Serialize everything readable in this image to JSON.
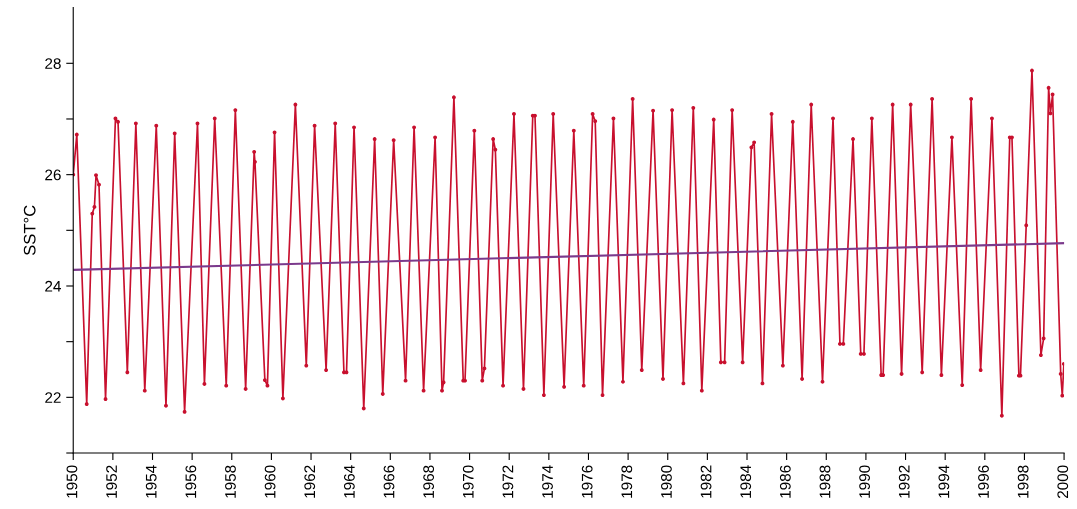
{
  "chart_data": {
    "type": "line",
    "ylabel": "SST°C",
    "xlim": [
      1950,
      2000
    ],
    "ylim": [
      21,
      29
    ],
    "xticks": [
      1950,
      1952,
      1954,
      1956,
      1958,
      1960,
      1962,
      1964,
      1966,
      1968,
      1970,
      1972,
      1974,
      1976,
      1978,
      1980,
      1982,
      1984,
      1986,
      1988,
      1990,
      1992,
      1994,
      1996,
      1998,
      2000
    ],
    "yticks": [
      {
        "value": 21,
        "label": null
      },
      22,
      {
        "value": 23,
        "label": null
      },
      24,
      {
        "value": 25,
        "label": null
      },
      26,
      {
        "value": 27,
        "label": null
      },
      28
    ],
    "grid": false,
    "marker": "circle",
    "line_style": "solid",
    "series": [
      {
        "color": "#c8102e",
        "x": [
          1950.0,
          1950.18,
          1950.68,
          1950.96,
          1951.07,
          1951.15,
          1951.3,
          1951.63,
          1952.13,
          1952.26,
          1952.73,
          1953.16,
          1953.61,
          1954.19,
          1954.68,
          1955.12,
          1955.62,
          1956.27,
          1956.62,
          1957.14,
          1957.72,
          1958.18,
          1958.7,
          1959.13,
          1959.17,
          1959.67,
          1959.8,
          1960.16,
          1960.58,
          1961.21,
          1961.76,
          1962.18,
          1962.76,
          1963.22,
          1963.66,
          1963.79,
          1964.17,
          1964.66,
          1965.21,
          1965.62,
          1966.17,
          1966.77,
          1967.2,
          1967.68,
          1968.26,
          1968.61,
          1968.69,
          1969.21,
          1969.68,
          1969.77,
          1970.24,
          1970.64,
          1970.75,
          1971.19,
          1971.3,
          1971.69,
          1972.24,
          1972.72,
          1973.19,
          1973.3,
          1973.75,
          1974.22,
          1974.77,
          1975.26,
          1975.76,
          1976.21,
          1976.34,
          1976.71,
          1977.26,
          1977.74,
          1978.23,
          1978.69,
          1979.26,
          1979.76,
          1980.22,
          1980.79,
          1981.29,
          1981.72,
          1982.32,
          1982.68,
          1982.87,
          1983.25,
          1983.78,
          1984.22,
          1984.36,
          1984.78,
          1985.24,
          1985.81,
          1986.31,
          1986.78,
          1987.24,
          1987.81,
          1988.34,
          1988.69,
          1988.86,
          1989.35,
          1989.74,
          1989.9,
          1990.3,
          1990.77,
          1990.87,
          1991.35,
          1991.8,
          1992.26,
          1992.84,
          1993.34,
          1993.81,
          1994.34,
          1994.86,
          1995.31,
          1995.79,
          1996.36,
          1996.86,
          1997.26,
          1997.37,
          1997.72,
          1997.8,
          1998.09,
          1998.38,
          1998.83,
          1998.97,
          1999.22,
          1999.31,
          1999.42,
          1999.83,
          1999.91,
          1999.99
        ],
        "values": [
          26.0,
          26.72,
          21.88,
          25.3,
          25.42,
          25.99,
          25.82,
          21.97,
          27.01,
          26.95,
          22.45,
          26.92,
          22.12,
          26.88,
          21.85,
          26.74,
          21.74,
          26.92,
          22.24,
          27.01,
          22.21,
          27.16,
          22.15,
          26.41,
          26.23,
          22.31,
          22.21,
          26.76,
          21.98,
          27.26,
          22.57,
          26.88,
          22.49,
          26.92,
          22.45,
          22.45,
          26.85,
          21.8,
          26.64,
          22.06,
          26.62,
          22.3,
          26.85,
          22.12,
          26.67,
          22.12,
          22.27,
          27.39,
          22.3,
          22.3,
          26.79,
          22.3,
          22.52,
          26.64,
          26.45,
          22.21,
          27.09,
          22.15,
          27.06,
          27.06,
          22.04,
          27.09,
          22.19,
          26.79,
          22.21,
          27.09,
          26.96,
          22.04,
          27.01,
          22.28,
          27.36,
          22.49,
          27.15,
          22.33,
          27.16,
          22.25,
          27.2,
          22.12,
          26.99,
          22.63,
          22.63,
          27.16,
          22.63,
          26.49,
          26.58,
          22.25,
          27.09,
          22.57,
          26.95,
          22.33,
          27.26,
          22.28,
          27.01,
          22.96,
          22.96,
          26.64,
          22.78,
          22.78,
          27.01,
          22.4,
          22.4,
          27.26,
          22.42,
          27.26,
          22.45,
          27.36,
          22.4,
          26.67,
          22.22,
          27.36,
          22.49,
          27.01,
          21.67,
          26.67,
          26.67,
          22.39,
          22.39,
          25.09,
          27.87,
          22.76,
          23.06,
          27.56,
          27.1,
          27.44,
          22.42,
          22.03,
          22.6
        ]
      },
      {
        "color": "#7b3a8c",
        "x": [
          1950,
          2000
        ],
        "values": [
          24.29,
          24.77
        ],
        "marker": "none"
      }
    ]
  }
}
